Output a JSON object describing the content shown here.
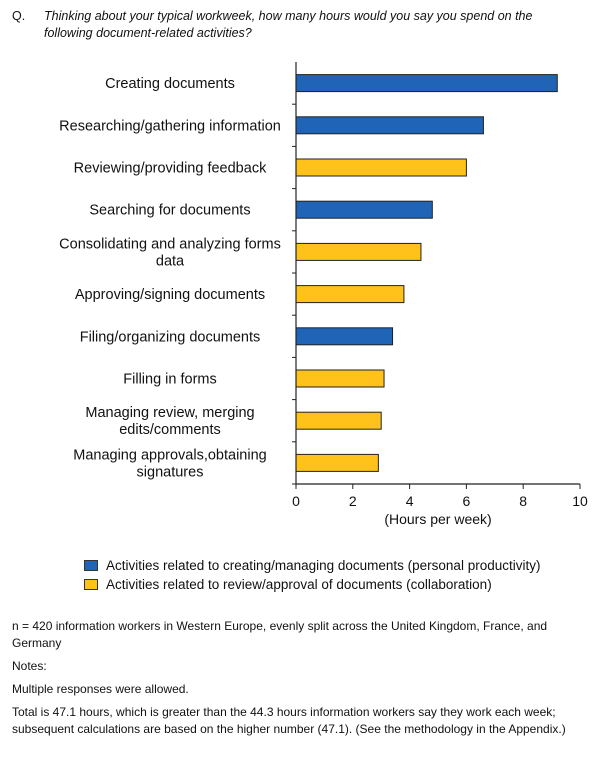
{
  "question": {
    "prefix": "Q.",
    "text": "Thinking about your typical workweek, how many hours would you say you spend on the following document-related activities?"
  },
  "colors": {
    "personal": "#1f64b7",
    "collaboration": "#ffc21a"
  },
  "chart_data": {
    "type": "bar",
    "orientation": "horizontal",
    "categories": [
      [
        "Creating documents"
      ],
      [
        "Researching/gathering information"
      ],
      [
        "Reviewing/providing feedback"
      ],
      [
        "Searching for documents"
      ],
      [
        "Consolidating and analyzing forms",
        "data"
      ],
      [
        "Approving/signing documents"
      ],
      [
        "Filing/organizing documents"
      ],
      [
        "Filling in forms"
      ],
      [
        "Managing review, merging",
        "edits/comments"
      ],
      [
        "Managing approvals,obtaining",
        "signatures"
      ]
    ],
    "values": [
      9.2,
      6.6,
      6.0,
      4.8,
      4.4,
      3.8,
      3.4,
      3.1,
      3.0,
      2.9
    ],
    "series_assignment": [
      "personal",
      "personal",
      "collaboration",
      "personal",
      "collaboration",
      "collaboration",
      "personal",
      "collaboration",
      "collaboration",
      "collaboration"
    ],
    "xlim": [
      0,
      10
    ],
    "xticks": [
      0,
      2,
      4,
      6,
      8,
      10
    ],
    "xlabel": "(Hours per week)",
    "series": [
      {
        "key": "personal",
        "name": "Activities related to creating/managing documents (personal productivity)"
      },
      {
        "key": "collaboration",
        "name": "Activities related to review/approval of documents (collaboration)"
      }
    ]
  },
  "footnotes": [
    "n = 420 information workers in Western Europe, evenly split across the United Kingdom, France, and Germany",
    "Notes:",
    "Multiple responses were allowed.",
    "Total is 47.1 hours, which is greater than the 44.3 hours information workers say they work each week; subsequent calculations are based on the higher number (47.1). (See the methodology in the Appendix.)"
  ]
}
